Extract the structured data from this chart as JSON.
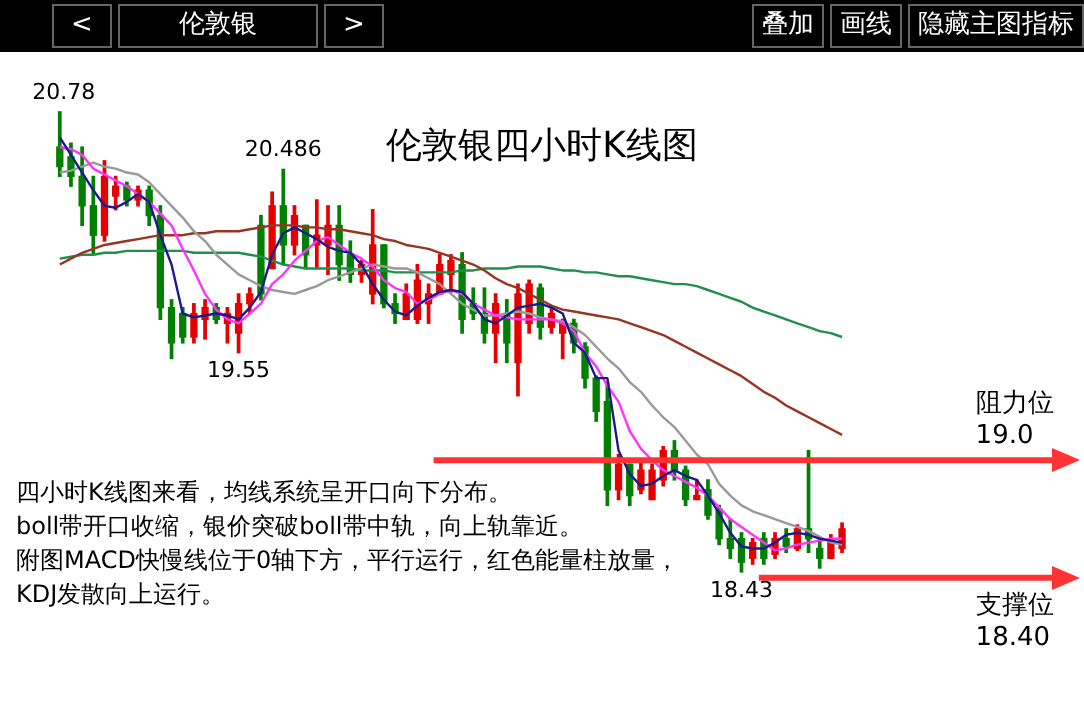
{
  "chart_data": {
    "type": "candlestick",
    "title": "伦敦银四小时K线图",
    "subtitle": "伦敦银",
    "categories": [
      null,
      null,
      null,
      null,
      null,
      null,
      null,
      null,
      null,
      null,
      null,
      null,
      null,
      null,
      null,
      null,
      null,
      null,
      null,
      null,
      null,
      null,
      null,
      null,
      null,
      null,
      null,
      null,
      null,
      null,
      null,
      null,
      null,
      null,
      null,
      null,
      null,
      null,
      null,
      null,
      null,
      null,
      null,
      null,
      null,
      null,
      null,
      null,
      null,
      null,
      null,
      null,
      null,
      null,
      null,
      null,
      null,
      null,
      null,
      null,
      null,
      null,
      null,
      null,
      null,
      null,
      null,
      null,
      null,
      null,
      null
    ],
    "ohlc": [
      [
        20.6,
        20.78,
        20.45,
        20.5
      ],
      [
        20.55,
        20.62,
        20.4,
        20.45
      ],
      [
        20.45,
        20.6,
        20.2,
        20.3
      ],
      [
        20.3,
        20.45,
        20.05,
        20.15
      ],
      [
        20.15,
        20.53,
        20.12,
        20.45
      ],
      [
        20.35,
        20.45,
        20.28,
        20.4
      ],
      [
        20.4,
        20.42,
        20.3,
        20.33
      ],
      [
        20.33,
        20.4,
        20.3,
        20.38
      ],
      [
        20.38,
        20.4,
        20.2,
        20.25
      ],
      [
        20.25,
        20.3,
        19.72,
        19.78
      ],
      [
        19.78,
        19.82,
        19.52,
        19.6
      ],
      [
        19.75,
        19.78,
        19.6,
        19.63
      ],
      [
        19.63,
        19.8,
        19.6,
        19.75
      ],
      [
        19.72,
        19.82,
        19.62,
        19.78
      ],
      [
        19.78,
        19.8,
        19.7,
        19.72
      ],
      [
        19.7,
        19.78,
        19.6,
        19.75
      ],
      [
        19.65,
        19.85,
        19.55,
        19.8
      ],
      [
        19.8,
        19.88,
        19.75,
        19.85
      ],
      [
        20.2,
        20.25,
        19.82,
        19.85
      ],
      [
        19.98,
        20.37,
        19.98,
        20.3
      ],
      [
        20.3,
        20.486,
        20.0,
        20.1
      ],
      [
        20.1,
        20.3,
        20.05,
        20.25
      ],
      [
        20.2,
        20.2,
        19.98,
        20.05
      ],
      [
        20.1,
        20.33,
        19.98,
        20.15
      ],
      [
        20.1,
        20.3,
        19.95,
        20.2
      ],
      [
        20.2,
        20.3,
        19.92,
        20.0
      ],
      [
        20.05,
        20.12,
        19.91,
        19.95
      ],
      [
        19.95,
        20.02,
        19.91,
        20.0
      ],
      [
        19.85,
        20.28,
        19.8,
        20.1
      ],
      [
        20.1,
        20.1,
        19.78,
        19.8
      ],
      [
        19.8,
        19.85,
        19.7,
        19.75
      ],
      [
        19.72,
        19.9,
        19.72,
        19.85
      ],
      [
        19.72,
        20.0,
        19.7,
        19.92
      ],
      [
        19.8,
        19.9,
        19.7,
        19.85
      ],
      [
        19.85,
        20.05,
        19.85,
        20.0
      ],
      [
        19.95,
        20.05,
        19.86,
        20.02
      ],
      [
        20.0,
        20.06,
        19.65,
        19.72
      ],
      [
        19.8,
        19.88,
        19.72,
        19.75
      ],
      [
        19.75,
        19.88,
        19.6,
        19.65
      ],
      [
        19.65,
        19.85,
        19.5,
        19.8
      ],
      [
        19.75,
        19.82,
        19.5,
        19.6
      ],
      [
        19.5,
        19.9,
        19.33,
        19.85
      ],
      [
        19.7,
        19.92,
        19.65,
        19.9
      ],
      [
        19.88,
        19.9,
        19.62,
        19.68
      ],
      [
        19.68,
        19.78,
        19.65,
        19.75
      ],
      [
        19.65,
        19.72,
        19.52,
        19.7
      ],
      [
        19.7,
        19.72,
        19.55,
        19.6
      ],
      [
        19.58,
        19.6,
        19.37,
        19.42
      ],
      [
        19.42,
        19.43,
        19.2,
        19.25
      ],
      [
        19.3,
        19.4,
        18.77,
        18.85
      ],
      [
        18.85,
        19.03,
        18.8,
        18.98
      ],
      [
        18.98,
        18.98,
        18.77,
        18.82
      ],
      [
        18.85,
        19.0,
        18.83,
        18.95
      ],
      [
        18.8,
        18.98,
        18.8,
        18.95
      ],
      [
        18.9,
        19.07,
        18.87,
        19.05
      ],
      [
        19.05,
        19.1,
        18.9,
        18.95
      ],
      [
        18.95,
        18.97,
        18.77,
        18.8
      ],
      [
        18.8,
        18.9,
        18.8,
        18.82
      ],
      [
        18.85,
        18.9,
        18.7,
        18.72
      ],
      [
        18.75,
        18.77,
        18.57,
        18.6
      ],
      [
        18.6,
        18.7,
        18.5,
        18.55
      ],
      [
        18.6,
        18.63,
        18.43,
        18.48
      ],
      [
        18.5,
        18.6,
        18.47,
        18.58
      ],
      [
        18.6,
        18.63,
        18.47,
        18.5
      ],
      [
        18.52,
        18.63,
        18.5,
        18.6
      ],
      [
        18.6,
        18.65,
        18.53,
        18.56
      ],
      [
        18.55,
        18.67,
        18.54,
        18.65
      ],
      [
        18.65,
        19.05,
        18.53,
        18.6
      ],
      [
        18.55,
        18.6,
        18.45,
        18.5
      ],
      [
        18.5,
        18.62,
        18.5,
        18.58
      ],
      [
        18.55,
        18.68,
        18.53,
        18.65
      ]
    ],
    "colors": [
      "#008000",
      "#008000",
      "#008000",
      "#008000",
      "#e60000",
      "#e60000",
      "#008000",
      "#e60000",
      "#008000",
      "#008000",
      "#008000",
      "#008000",
      "#e60000",
      "#e60000",
      "#008000",
      "#e60000",
      "#e60000",
      "#e60000",
      "#008000",
      "#e60000",
      "#008000",
      "#e60000",
      "#008000",
      "#e60000",
      "#e60000",
      "#008000",
      "#008000",
      "#e60000",
      "#e60000",
      "#008000",
      "#008000",
      "#e60000",
      "#e60000",
      "#e60000",
      "#e60000",
      "#e60000",
      "#008000",
      "#008000",
      "#008000",
      "#e60000",
      "#008000",
      "#e60000",
      "#e60000",
      "#008000",
      "#e60000",
      "#e60000",
      "#008000",
      "#008000",
      "#008000",
      "#008000",
      "#e60000",
      "#008000",
      "#e60000",
      "#e60000",
      "#e60000",
      "#008000",
      "#008000",
      "#e60000",
      "#008000",
      "#008000",
      "#008000",
      "#008000",
      "#e60000",
      "#008000",
      "#e60000",
      "#008000",
      "#e60000",
      "#008000",
      "#008000",
      "#e60000",
      "#e60000"
    ],
    "series": [
      {
        "type": "line",
        "color": "#1a1a8c",
        "values": [
          20.65,
          20.56,
          20.47,
          20.38,
          20.3,
          20.29,
          20.32,
          20.36,
          20.32,
          20.15,
          20.0,
          19.75,
          19.73,
          19.74,
          19.75,
          19.74,
          19.72,
          19.78,
          19.86,
          20.05,
          20.16,
          20.19,
          20.16,
          20.13,
          20.09,
          20.07,
          20.06,
          20.0,
          19.9,
          19.82,
          19.76,
          19.74,
          19.79,
          19.83,
          19.86,
          19.87,
          19.86,
          19.8,
          19.72,
          19.7,
          19.74,
          19.78,
          19.79,
          19.8,
          19.78,
          19.75,
          19.6,
          19.55,
          19.42,
          19.42,
          19.05,
          18.93,
          18.87,
          18.88,
          18.92,
          18.95,
          18.92,
          18.9,
          18.82,
          18.73,
          18.63,
          18.56,
          18.55,
          18.55,
          18.58,
          18.62,
          18.63,
          18.62,
          18.6,
          18.59,
          18.58
        ]
      },
      {
        "type": "line",
        "color": "#ff33ff",
        "values": [
          20.6,
          20.59,
          20.56,
          20.49,
          20.46,
          20.43,
          20.4,
          20.36,
          20.32,
          20.26,
          20.2,
          20.08,
          19.97,
          19.85,
          19.77,
          19.72,
          19.7,
          19.75,
          19.8,
          19.9,
          19.95,
          20.02,
          20.07,
          20.12,
          20.14,
          20.1,
          20.06,
          20.03,
          19.99,
          19.92,
          19.88,
          19.86,
          19.8,
          19.82,
          19.85,
          19.87,
          19.85,
          19.8,
          19.77,
          19.74,
          19.73,
          19.72,
          19.72,
          19.72,
          19.72,
          19.7,
          19.66,
          19.55,
          19.48,
          19.38,
          19.3,
          19.15,
          19.06,
          19.0,
          18.95,
          18.92,
          18.89,
          18.86,
          18.82,
          18.76,
          18.7,
          18.66,
          18.62,
          18.58,
          18.54,
          18.55,
          18.57,
          18.58,
          18.59,
          18.6,
          18.6
        ]
      },
      {
        "type": "line",
        "color": "#999999",
        "values": [
          20.47,
          20.48,
          20.5,
          20.52,
          20.5,
          20.49,
          20.47,
          20.46,
          20.42,
          20.36,
          20.3,
          20.24,
          20.17,
          20.12,
          20.05,
          20.0,
          19.95,
          19.92,
          19.89,
          19.87,
          19.86,
          19.85,
          19.87,
          19.89,
          19.92,
          19.94,
          19.96,
          19.98,
          20.0,
          19.99,
          19.98,
          19.98,
          19.96,
          19.93,
          19.9,
          19.85,
          19.8,
          19.77,
          19.74,
          19.74,
          19.75,
          19.76,
          19.75,
          19.73,
          19.72,
          19.71,
          19.68,
          19.64,
          19.58,
          19.52,
          19.47,
          19.4,
          19.35,
          19.28,
          19.22,
          19.17,
          19.1,
          19.03,
          18.98,
          18.88,
          18.82,
          18.77,
          18.74,
          18.72,
          18.7,
          18.68,
          18.66,
          18.64,
          18.61,
          18.58,
          18.57
        ]
      },
      {
        "type": "line",
        "color": "#993322",
        "values": [
          20.0,
          20.03,
          20.06,
          20.08,
          20.1,
          20.11,
          20.12,
          20.13,
          20.14,
          20.15,
          20.15,
          20.15,
          20.16,
          20.16,
          20.17,
          20.17,
          20.17,
          20.18,
          20.19,
          20.2,
          20.2,
          20.2,
          20.19,
          20.19,
          20.18,
          20.18,
          20.17,
          20.16,
          20.15,
          20.13,
          20.12,
          20.1,
          20.09,
          20.08,
          20.06,
          20.04,
          20.02,
          20.0,
          19.97,
          19.93,
          19.9,
          19.88,
          19.85,
          19.82,
          19.79,
          19.77,
          19.76,
          19.75,
          19.74,
          19.73,
          19.72,
          19.7,
          19.68,
          19.66,
          19.64,
          19.61,
          19.58,
          19.55,
          19.52,
          19.49,
          19.46,
          19.43,
          19.39,
          19.35,
          19.32,
          19.28,
          19.25,
          19.22,
          19.19,
          19.16,
          19.13
        ]
      },
      {
        "type": "line",
        "color": "#1f8f4a",
        "values": [
          20.03,
          20.04,
          20.05,
          20.05,
          20.06,
          20.06,
          20.07,
          20.07,
          20.07,
          20.07,
          20.07,
          20.07,
          20.06,
          20.06,
          20.06,
          20.06,
          20.06,
          20.05,
          20.04,
          20.02,
          20.0,
          19.99,
          19.98,
          19.98,
          19.98,
          19.98,
          19.98,
          19.97,
          19.97,
          19.97,
          19.96,
          19.96,
          19.96,
          19.96,
          19.96,
          19.96,
          19.97,
          19.97,
          19.98,
          19.98,
          19.98,
          19.99,
          19.99,
          19.99,
          19.98,
          19.97,
          19.97,
          19.96,
          19.96,
          19.95,
          19.94,
          19.94,
          19.93,
          19.92,
          19.91,
          19.9,
          19.9,
          19.89,
          19.87,
          19.85,
          19.83,
          19.81,
          19.78,
          19.76,
          19.74,
          19.72,
          19.7,
          19.68,
          19.66,
          19.65,
          19.63
        ]
      }
    ],
    "ref_lines": [
      {
        "axis": "y",
        "value": 19.0,
        "label": "阻力位 19.0",
        "color": "#ff3333"
      },
      {
        "axis": "y",
        "value": 18.4,
        "label": "支撑位 18.40",
        "color": "#ff3333"
      }
    ],
    "annotations": [
      "<",
      ">",
      "叠加",
      "画线",
      "隐藏主图指标",
      "四小时K线图来看，均线系统呈开口向下分布。",
      "boll带开口收缩，银价突破boll带中轨，向上轨靠近。",
      "附图MACD快慢线位于0轴下方，平行运行，红色能量柱放量，",
      "KDJ发散向上运行。",
      {
        "text": "20.78",
        "y": 20.78
      },
      {
        "text": "20.486",
        "y": 20.486
      },
      {
        "text": "19.55",
        "y": 19.55
      },
      {
        "text": "18.43",
        "y": 18.43
      }
    ]
  }
}
